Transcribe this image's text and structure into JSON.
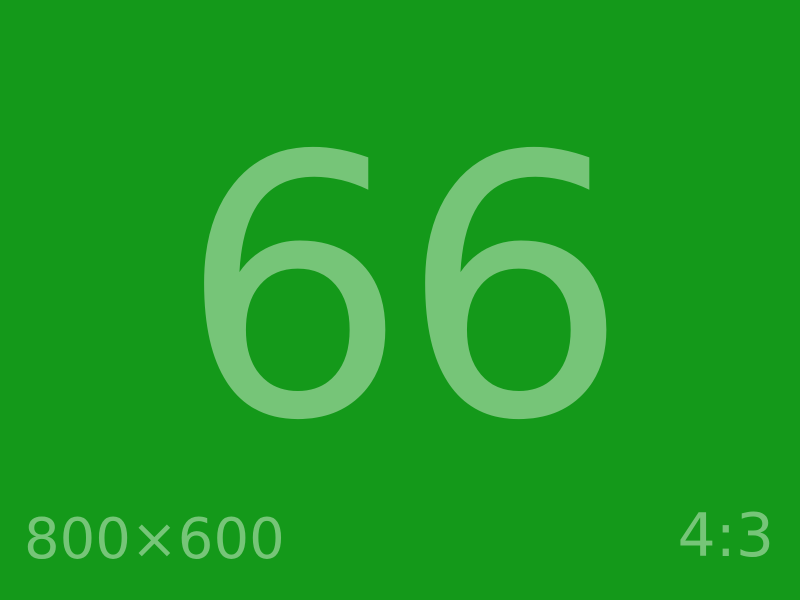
{
  "placeholder": {
    "number": "66",
    "dimensions": "800×600",
    "aspect_ratio": "4:3"
  },
  "colors": {
    "background": "#14991a",
    "text": "#76c578"
  }
}
